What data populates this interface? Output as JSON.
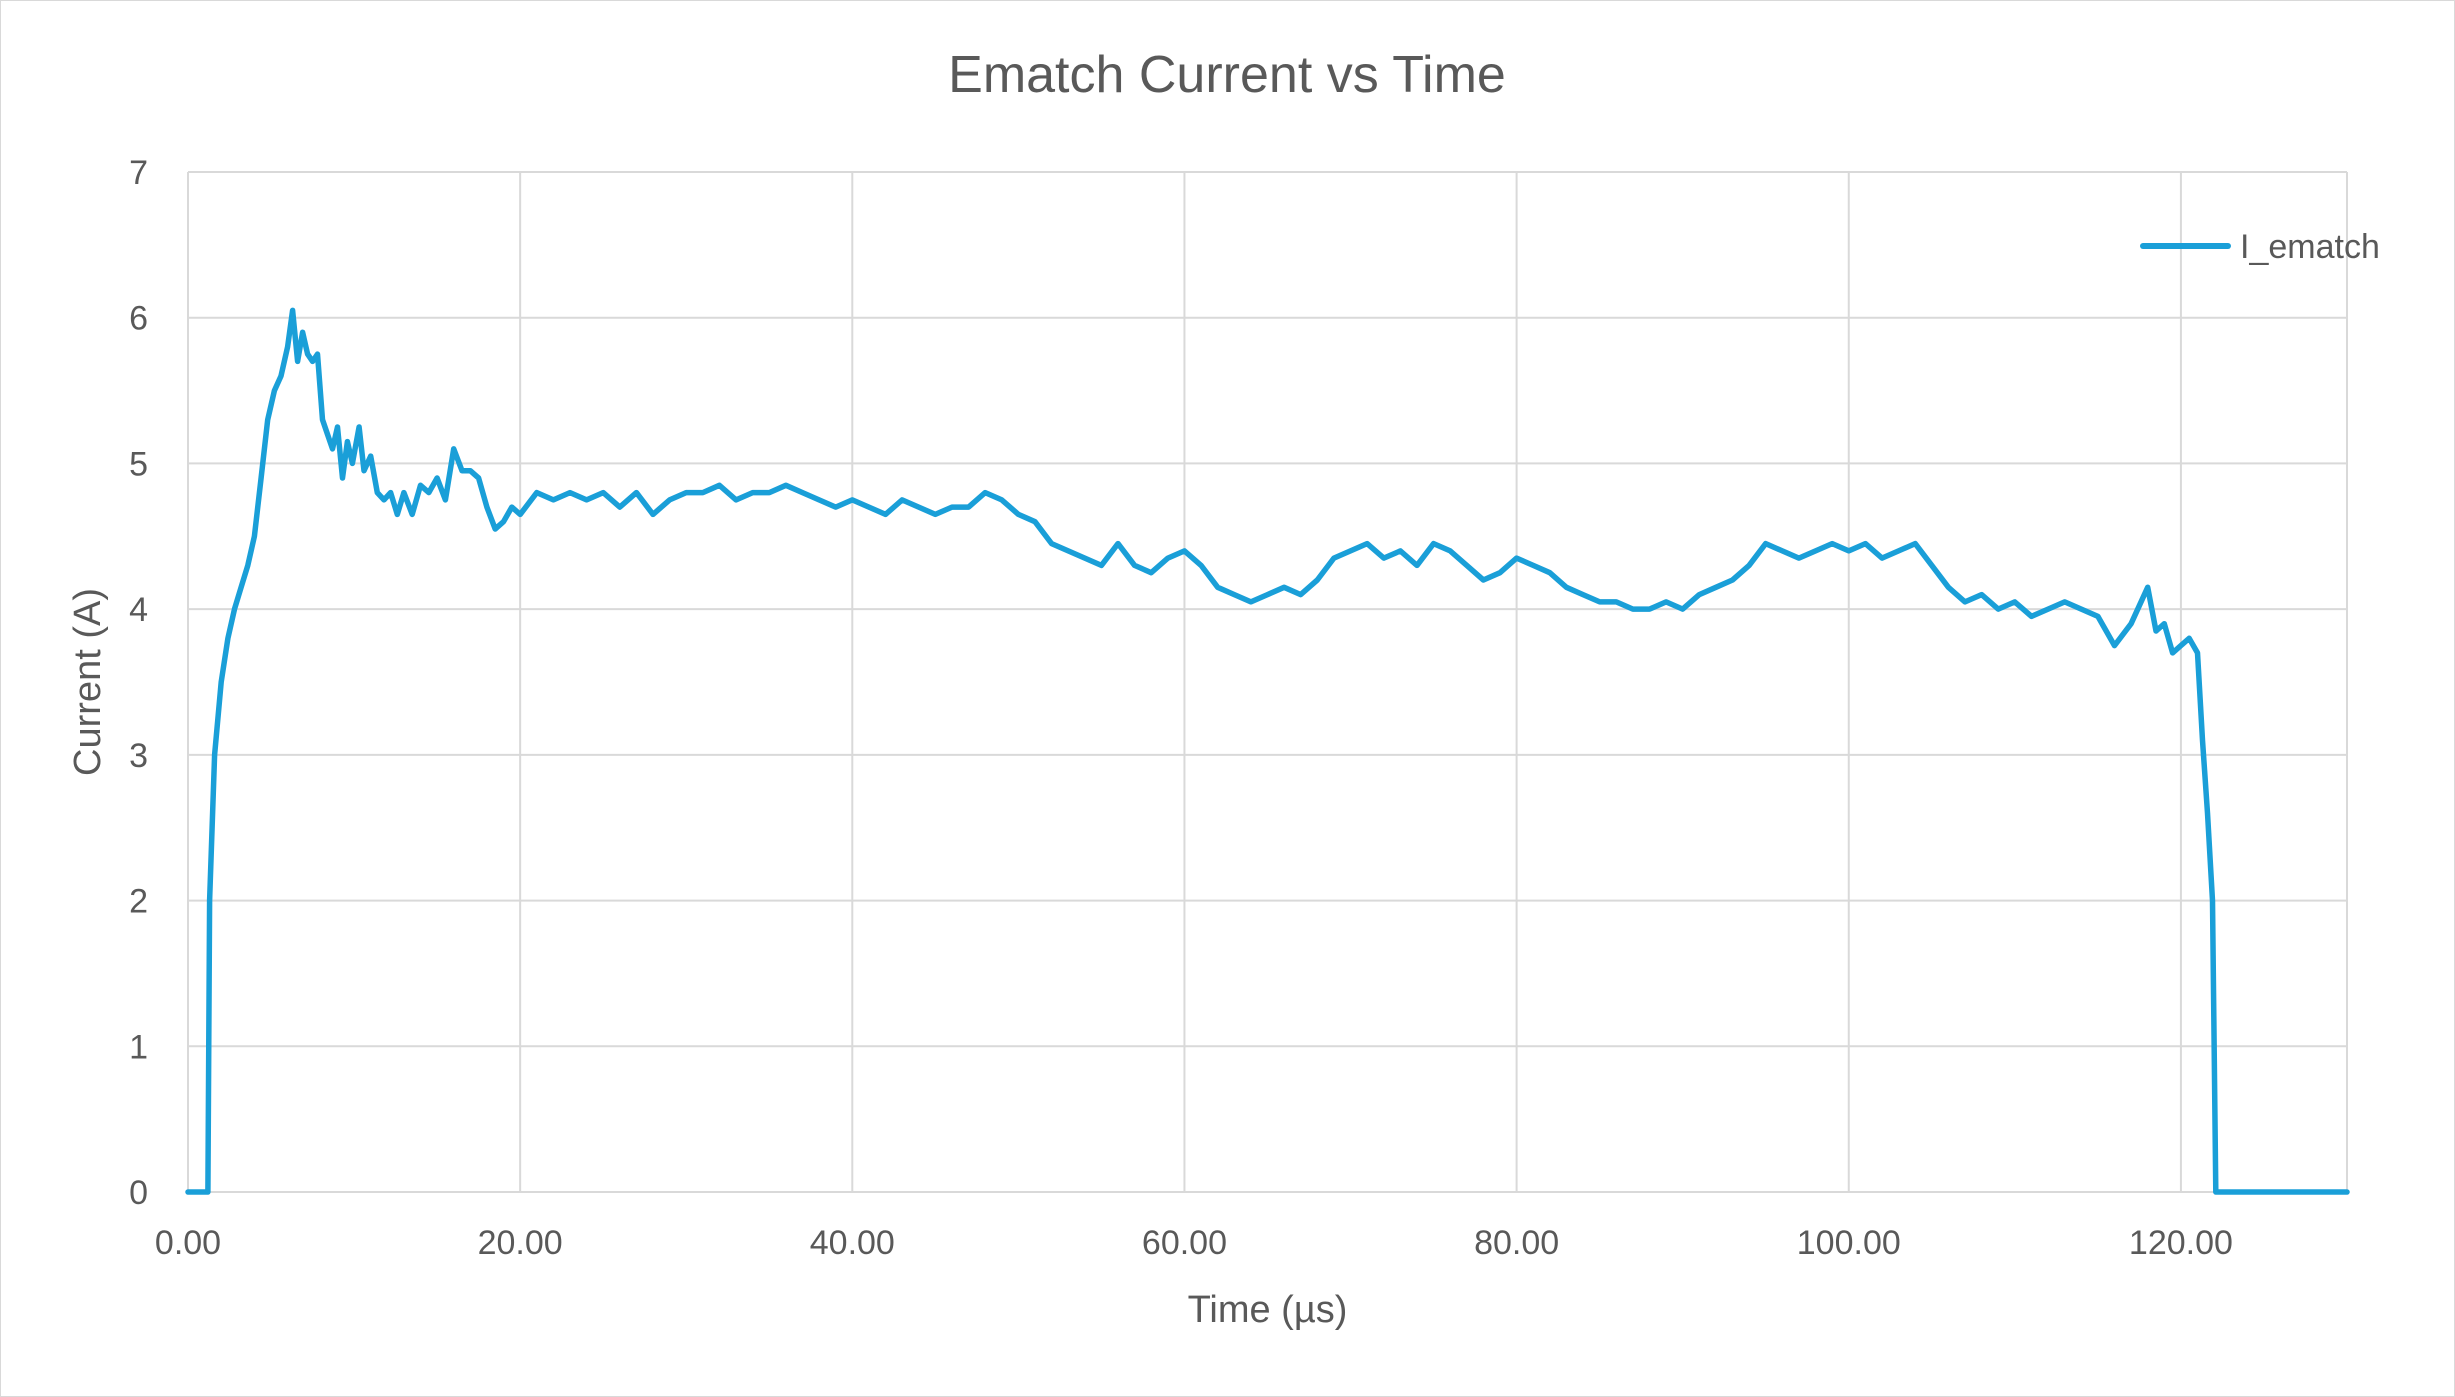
{
  "chart_data": {
    "type": "line",
    "title": "Ematch Current vs Time",
    "xlabel": "Time (µs)",
    "ylabel": "Current (A)",
    "xlim": [
      0,
      130
    ],
    "ylim": [
      0,
      7
    ],
    "x_ticks": [
      "0.00",
      "20.00",
      "40.00",
      "60.00",
      "80.00",
      "100.00",
      "120.00"
    ],
    "y_ticks": [
      "0",
      "1",
      "2",
      "3",
      "4",
      "5",
      "6",
      "7"
    ],
    "grid": true,
    "legend_position": "top-right",
    "colors": {
      "series": "#1a9fd8",
      "grid": "#d9d9d9",
      "text": "#595959"
    },
    "series": [
      {
        "name": "I_ematch",
        "x": [
          0,
          1.2,
          1.3,
          1.6,
          2,
          2.4,
          2.8,
          3.2,
          3.6,
          4,
          4.4,
          4.8,
          5.2,
          5.6,
          6,
          6.3,
          6.6,
          6.9,
          7.2,
          7.5,
          7.8,
          8.1,
          8.4,
          8.7,
          9,
          9.3,
          9.6,
          9.9,
          10.3,
          10.6,
          11,
          11.4,
          11.8,
          12.2,
          12.6,
          13,
          13.5,
          14,
          14.5,
          15,
          15.5,
          16,
          16.5,
          17,
          17.5,
          18,
          18.5,
          19,
          19.5,
          20,
          21,
          22,
          23,
          24,
          25,
          26,
          27,
          28,
          29,
          30,
          31,
          32,
          33,
          34,
          35,
          36,
          37,
          38,
          39,
          40,
          41,
          42,
          43,
          44,
          45,
          46,
          47,
          48,
          49,
          50,
          51,
          52,
          53,
          54,
          55,
          56,
          57,
          58,
          59,
          60,
          61,
          62,
          63,
          64,
          65,
          66,
          67,
          68,
          69,
          70,
          71,
          72,
          73,
          74,
          75,
          76,
          77,
          78,
          79,
          80,
          81,
          82,
          83,
          84,
          85,
          86,
          87,
          88,
          89,
          90,
          91,
          92,
          93,
          94,
          95,
          96,
          97,
          98,
          99,
          100,
          101,
          102,
          103,
          104,
          105,
          106,
          107,
          108,
          109,
          110,
          111,
          112,
          113,
          114,
          115,
          116,
          117,
          118,
          118.5,
          119,
          119.5,
          120,
          120.5,
          121,
          121.3,
          121.6,
          121.9,
          122.1,
          122.3,
          130
        ],
        "values": [
          0,
          0,
          2,
          3,
          3.5,
          3.8,
          4.0,
          4.15,
          4.3,
          4.5,
          4.9,
          5.3,
          5.5,
          5.6,
          5.8,
          6.05,
          5.7,
          5.9,
          5.75,
          5.7,
          5.75,
          5.3,
          5.2,
          5.1,
          5.25,
          4.9,
          5.15,
          5.0,
          5.25,
          4.95,
          5.05,
          4.8,
          4.75,
          4.8,
          4.65,
          4.8,
          4.65,
          4.85,
          4.8,
          4.9,
          4.75,
          5.1,
          4.95,
          4.95,
          4.9,
          4.7,
          4.55,
          4.6,
          4.7,
          4.65,
          4.8,
          4.75,
          4.8,
          4.75,
          4.8,
          4.7,
          4.8,
          4.65,
          4.75,
          4.8,
          4.8,
          4.85,
          4.75,
          4.8,
          4.8,
          4.85,
          4.8,
          4.75,
          4.7,
          4.75,
          4.7,
          4.65,
          4.75,
          4.7,
          4.65,
          4.7,
          4.7,
          4.8,
          4.75,
          4.65,
          4.6,
          4.45,
          4.4,
          4.35,
          4.3,
          4.45,
          4.3,
          4.25,
          4.35,
          4.4,
          4.3,
          4.15,
          4.1,
          4.05,
          4.1,
          4.15,
          4.1,
          4.2,
          4.35,
          4.4,
          4.45,
          4.35,
          4.4,
          4.3,
          4.45,
          4.4,
          4.3,
          4.2,
          4.25,
          4.35,
          4.3,
          4.25,
          4.15,
          4.1,
          4.05,
          4.05,
          4.0,
          4.0,
          4.05,
          4.0,
          4.1,
          4.15,
          4.2,
          4.3,
          4.45,
          4.4,
          4.35,
          4.4,
          4.45,
          4.4,
          4.45,
          4.35,
          4.4,
          4.45,
          4.3,
          4.15,
          4.05,
          4.1,
          4.0,
          4.05,
          3.95,
          4.0,
          4.05,
          4.0,
          3.95,
          3.75,
          3.9,
          4.15,
          3.85,
          3.9,
          3.7,
          3.75,
          3.8,
          3.7,
          3.1,
          2.6,
          2.0,
          0,
          0,
          0
        ]
      }
    ]
  }
}
